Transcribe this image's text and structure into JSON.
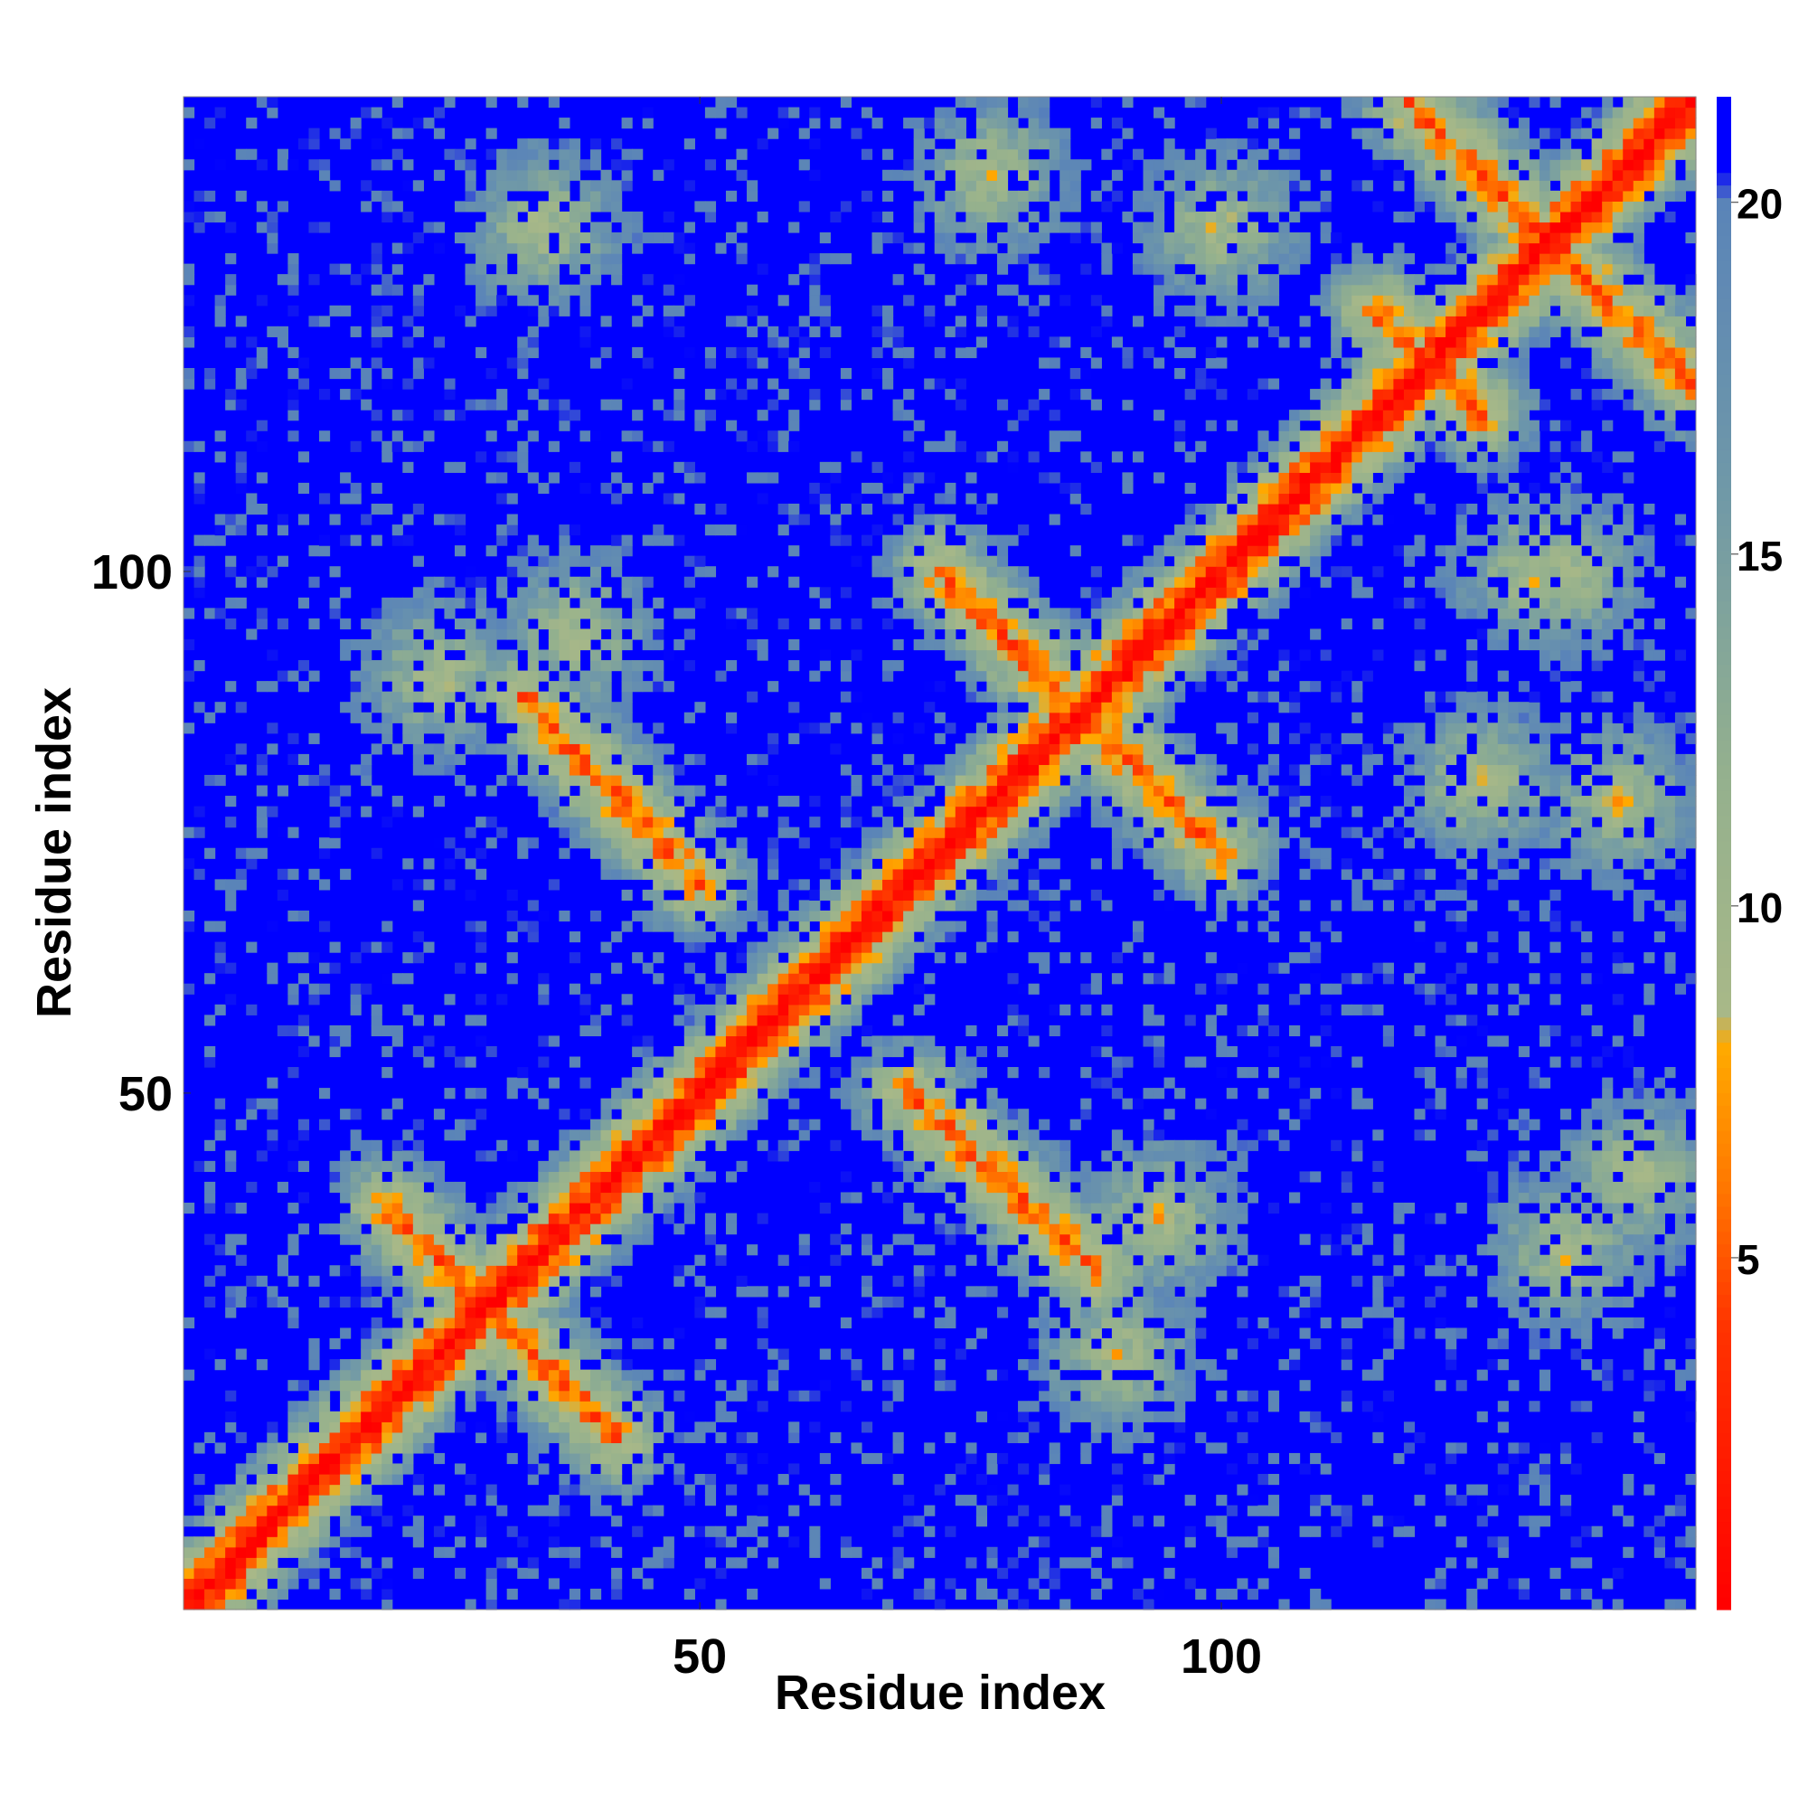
{
  "chart_data": {
    "type": "heatmap",
    "title": "",
    "xlabel": "Residue index",
    "ylabel": "Residue index",
    "n_residues": 145,
    "xlim": [
      1,
      145
    ],
    "ylim": [
      1,
      145
    ],
    "x_ticks": [
      50,
      100
    ],
    "y_ticks": [
      50,
      100
    ],
    "colorbar": {
      "ticks": [
        5,
        10,
        15,
        20
      ],
      "range": [
        0,
        21.5
      ],
      "description": "distance map, low values red, high values blue",
      "stops": [
        {
          "value": 0,
          "color": "#ff0000"
        },
        {
          "value": 4,
          "color": "#ff3300"
        },
        {
          "value": 6,
          "color": "#ff7700"
        },
        {
          "value": 8,
          "color": "#ffaa00"
        },
        {
          "value": 8.5,
          "color": "#a8b888"
        },
        {
          "value": 12,
          "color": "#93b08e"
        },
        {
          "value": 16,
          "color": "#6f98a8"
        },
        {
          "value": 20,
          "color": "#5a84b8"
        },
        {
          "value": 20.5,
          "color": "#0000ff"
        },
        {
          "value": 21.5,
          "color": "#0000ff"
        }
      ]
    },
    "features": [
      {
        "kind": "diagonal",
        "from": [
          1,
          1
        ],
        "to": [
          145,
          145
        ]
      },
      {
        "kind": "antiparallel_strip",
        "from": [
          20,
          39
        ],
        "to": [
          42,
          17
        ]
      },
      {
        "kind": "antiparallel_strip",
        "from": [
          33,
          88
        ],
        "to": [
          50,
          70
        ]
      },
      {
        "kind": "antiparallel_strip",
        "from": [
          70,
          50
        ],
        "to": [
          88,
          33
        ]
      },
      {
        "kind": "antiparallel_strip",
        "from": [
          73,
          100
        ],
        "to": [
          100,
          73
        ]
      },
      {
        "kind": "antiparallel_strip",
        "from": [
          118,
          145
        ],
        "to": [
          145,
          118
        ]
      },
      {
        "kind": "antiparallel_strip",
        "from": [
          115,
          125
        ],
        "to": [
          125,
          115
        ]
      },
      {
        "kind": "contact_cluster",
        "center": [
          38,
          94
        ]
      },
      {
        "kind": "contact_cluster",
        "center": [
          94,
          38
        ]
      },
      {
        "kind": "contact_cluster",
        "center": [
          25,
          90
        ]
      },
      {
        "kind": "contact_cluster",
        "center": [
          90,
          25
        ]
      },
      {
        "kind": "contact_cluster",
        "center": [
          35,
          133
        ]
      },
      {
        "kind": "contact_cluster",
        "center": [
          133,
          35
        ]
      },
      {
        "kind": "contact_cluster",
        "center": [
          78,
          138
        ]
      },
      {
        "kind": "contact_cluster",
        "center": [
          138,
          78
        ]
      },
      {
        "kind": "contact_cluster",
        "center": [
          100,
          133
        ]
      },
      {
        "kind": "contact_cluster",
        "center": [
          133,
          100
        ]
      },
      {
        "kind": "contact_cluster",
        "center": [
          130,
          100
        ]
      },
      {
        "kind": "contact_cluster",
        "center": [
          125,
          80
        ]
      },
      {
        "kind": "contact_cluster",
        "center": [
          140,
          42
        ]
      }
    ]
  }
}
